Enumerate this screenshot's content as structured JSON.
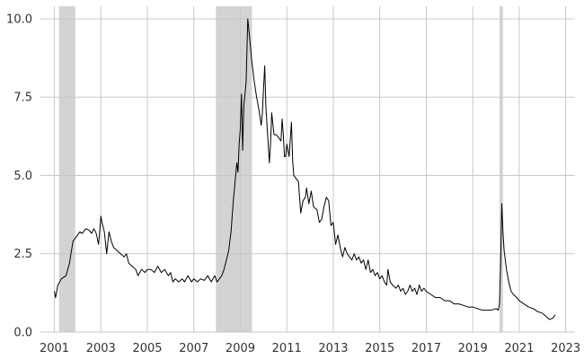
{
  "chart_data": {
    "type": "line",
    "title": "",
    "xlabel": "",
    "ylabel": "",
    "xlim": [
      2000.4,
      2023.4
    ],
    "ylim": [
      0,
      10.4
    ],
    "grid": true,
    "x_ticks": [
      2001,
      2003,
      2005,
      2007,
      2009,
      2011,
      2013,
      2015,
      2017,
      2019,
      2021,
      2023
    ],
    "x_tick_labels": [
      "2001",
      "2003",
      "2005",
      "2007",
      "2009",
      "2011",
      "2013",
      "2015",
      "2017",
      "2019",
      "2021",
      "2023"
    ],
    "y_ticks": [
      0,
      2.5,
      5,
      7.5,
      10
    ],
    "y_tick_labels": [
      "0.0",
      "2.5",
      "5.0",
      "7.5",
      "10.0"
    ],
    "shaded_periods": [
      {
        "start": 2001.2,
        "end": 2001.9
      },
      {
        "start": 2007.95,
        "end": 2009.5
      },
      {
        "start": 2020.15,
        "end": 2020.3
      }
    ],
    "series": [
      {
        "color": "#000000",
        "points": [
          [
            2001.0,
            1.3
          ],
          [
            2001.05,
            1.1
          ],
          [
            2001.15,
            1.5
          ],
          [
            2001.3,
            1.7
          ],
          [
            2001.5,
            1.8
          ],
          [
            2001.65,
            2.2
          ],
          [
            2001.8,
            2.9
          ],
          [
            2001.9,
            3.0
          ],
          [
            2002.0,
            3.1
          ],
          [
            2002.1,
            3.2
          ],
          [
            2002.2,
            3.15
          ],
          [
            2002.35,
            3.3
          ],
          [
            2002.5,
            3.25
          ],
          [
            2002.6,
            3.15
          ],
          [
            2002.7,
            3.3
          ],
          [
            2002.8,
            3.15
          ],
          [
            2002.9,
            2.8
          ],
          [
            2002.95,
            3.2
          ],
          [
            2003.0,
            3.7
          ],
          [
            2003.05,
            3.5
          ],
          [
            2003.15,
            3.2
          ],
          [
            2003.25,
            2.5
          ],
          [
            2003.35,
            3.2
          ],
          [
            2003.45,
            2.9
          ],
          [
            2003.55,
            2.7
          ],
          [
            2003.7,
            2.6
          ],
          [
            2003.85,
            2.5
          ],
          [
            2004.0,
            2.4
          ],
          [
            2004.1,
            2.5
          ],
          [
            2004.2,
            2.2
          ],
          [
            2004.35,
            2.1
          ],
          [
            2004.5,
            2.0
          ],
          [
            2004.6,
            1.8
          ],
          [
            2004.75,
            2.0
          ],
          [
            2004.9,
            1.9
          ],
          [
            2005.0,
            2.0
          ],
          [
            2005.15,
            2.0
          ],
          [
            2005.3,
            1.9
          ],
          [
            2005.45,
            2.1
          ],
          [
            2005.6,
            1.9
          ],
          [
            2005.75,
            2.0
          ],
          [
            2005.9,
            1.8
          ],
          [
            2006.0,
            1.9
          ],
          [
            2006.1,
            1.6
          ],
          [
            2006.2,
            1.7
          ],
          [
            2006.35,
            1.6
          ],
          [
            2006.5,
            1.7
          ],
          [
            2006.6,
            1.6
          ],
          [
            2006.75,
            1.8
          ],
          [
            2006.9,
            1.6
          ],
          [
            2007.0,
            1.7
          ],
          [
            2007.15,
            1.6
          ],
          [
            2007.3,
            1.7
          ],
          [
            2007.45,
            1.65
          ],
          [
            2007.6,
            1.8
          ],
          [
            2007.75,
            1.6
          ],
          [
            2007.9,
            1.8
          ],
          [
            2008.0,
            1.6
          ],
          [
            2008.1,
            1.7
          ],
          [
            2008.2,
            1.8
          ],
          [
            2008.3,
            2.0
          ],
          [
            2008.4,
            2.3
          ],
          [
            2008.5,
            2.6
          ],
          [
            2008.6,
            3.2
          ],
          [
            2008.7,
            4.2
          ],
          [
            2008.8,
            5.0
          ],
          [
            2008.85,
            5.4
          ],
          [
            2008.9,
            5.1
          ],
          [
            2008.95,
            6.0
          ],
          [
            2009.0,
            6.5
          ],
          [
            2009.05,
            7.6
          ],
          [
            2009.1,
            5.8
          ],
          [
            2009.15,
            7.2
          ],
          [
            2009.25,
            8.0
          ],
          [
            2009.32,
            10.0
          ],
          [
            2009.4,
            9.4
          ],
          [
            2009.5,
            8.6
          ],
          [
            2009.6,
            8.0
          ],
          [
            2009.7,
            7.5
          ],
          [
            2009.8,
            7.1
          ],
          [
            2009.9,
            6.6
          ],
          [
            2009.95,
            7.0
          ],
          [
            2010.0,
            7.8
          ],
          [
            2010.05,
            8.5
          ],
          [
            2010.1,
            7.2
          ],
          [
            2010.2,
            6.0
          ],
          [
            2010.25,
            5.4
          ],
          [
            2010.3,
            6.0
          ],
          [
            2010.35,
            7.0
          ],
          [
            2010.45,
            6.3
          ],
          [
            2010.55,
            6.3
          ],
          [
            2010.65,
            6.2
          ],
          [
            2010.75,
            6.1
          ],
          [
            2010.8,
            6.8
          ],
          [
            2010.85,
            6.3
          ],
          [
            2010.9,
            5.6
          ],
          [
            2010.95,
            5.6
          ],
          [
            2011.0,
            6.0
          ],
          [
            2011.1,
            5.6
          ],
          [
            2011.2,
            6.7
          ],
          [
            2011.25,
            5.5
          ],
          [
            2011.3,
            5.0
          ],
          [
            2011.4,
            4.9
          ],
          [
            2011.5,
            4.8
          ],
          [
            2011.6,
            3.8
          ],
          [
            2011.7,
            4.2
          ],
          [
            2011.8,
            4.3
          ],
          [
            2011.85,
            4.6
          ],
          [
            2011.95,
            4.1
          ],
          [
            2012.05,
            4.5
          ],
          [
            2012.15,
            4.0
          ],
          [
            2012.3,
            3.9
          ],
          [
            2012.4,
            3.5
          ],
          [
            2012.5,
            3.6
          ],
          [
            2012.6,
            4.0
          ],
          [
            2012.7,
            4.3
          ],
          [
            2012.8,
            4.2
          ],
          [
            2012.9,
            3.4
          ],
          [
            2013.0,
            3.5
          ],
          [
            2013.1,
            2.8
          ],
          [
            2013.2,
            3.1
          ],
          [
            2013.3,
            2.7
          ],
          [
            2013.4,
            2.4
          ],
          [
            2013.5,
            2.7
          ],
          [
            2013.6,
            2.5
          ],
          [
            2013.7,
            2.4
          ],
          [
            2013.8,
            2.3
          ],
          [
            2013.9,
            2.5
          ],
          [
            2014.0,
            2.3
          ],
          [
            2014.1,
            2.4
          ],
          [
            2014.2,
            2.2
          ],
          [
            2014.3,
            2.3
          ],
          [
            2014.4,
            2.0
          ],
          [
            2014.5,
            2.3
          ],
          [
            2014.6,
            1.9
          ],
          [
            2014.7,
            2.0
          ],
          [
            2014.8,
            1.8
          ],
          [
            2014.9,
            1.9
          ],
          [
            2015.0,
            1.7
          ],
          [
            2015.1,
            1.8
          ],
          [
            2015.2,
            1.6
          ],
          [
            2015.3,
            1.5
          ],
          [
            2015.35,
            2.0
          ],
          [
            2015.45,
            1.6
          ],
          [
            2015.55,
            1.5
          ],
          [
            2015.7,
            1.4
          ],
          [
            2015.8,
            1.5
          ],
          [
            2015.9,
            1.3
          ],
          [
            2016.0,
            1.4
          ],
          [
            2016.1,
            1.2
          ],
          [
            2016.2,
            1.3
          ],
          [
            2016.3,
            1.5
          ],
          [
            2016.4,
            1.3
          ],
          [
            2016.5,
            1.4
          ],
          [
            2016.6,
            1.2
          ],
          [
            2016.7,
            1.5
          ],
          [
            2016.8,
            1.3
          ],
          [
            2016.9,
            1.4
          ],
          [
            2017.0,
            1.3
          ],
          [
            2017.2,
            1.2
          ],
          [
            2017.4,
            1.1
          ],
          [
            2017.6,
            1.1
          ],
          [
            2017.8,
            1.0
          ],
          [
            2018.0,
            1.0
          ],
          [
            2018.2,
            0.9
          ],
          [
            2018.4,
            0.9
          ],
          [
            2018.6,
            0.85
          ],
          [
            2018.8,
            0.8
          ],
          [
            2019.0,
            0.8
          ],
          [
            2019.2,
            0.75
          ],
          [
            2019.4,
            0.7
          ],
          [
            2019.6,
            0.7
          ],
          [
            2019.8,
            0.7
          ],
          [
            2020.0,
            0.75
          ],
          [
            2020.1,
            0.7
          ],
          [
            2020.15,
            0.9
          ],
          [
            2020.2,
            2.2
          ],
          [
            2020.25,
            4.1
          ],
          [
            2020.3,
            3.2
          ],
          [
            2020.35,
            2.6
          ],
          [
            2020.45,
            2.0
          ],
          [
            2020.55,
            1.6
          ],
          [
            2020.65,
            1.3
          ],
          [
            2020.75,
            1.2
          ],
          [
            2020.9,
            1.1
          ],
          [
            2021.0,
            1.0
          ],
          [
            2021.2,
            0.9
          ],
          [
            2021.4,
            0.8
          ],
          [
            2021.6,
            0.75
          ],
          [
            2021.8,
            0.65
          ],
          [
            2022.0,
            0.6
          ],
          [
            2022.15,
            0.5
          ],
          [
            2022.3,
            0.4
          ],
          [
            2022.45,
            0.45
          ],
          [
            2022.55,
            0.55
          ]
        ]
      }
    ]
  }
}
